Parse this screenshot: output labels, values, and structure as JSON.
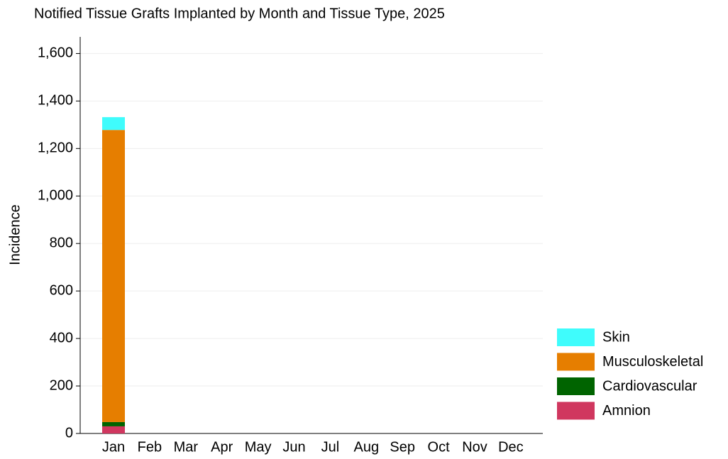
{
  "chart_data": {
    "type": "stacked_bar",
    "title": "Notified Tissue Grafts Implanted by Month and Tissue Type, 2025",
    "y_label": "Incidence",
    "categories": [
      "Jan",
      "Feb",
      "Mar",
      "Apr",
      "May",
      "Jun",
      "Jul",
      "Aug",
      "Sep",
      "Oct",
      "Nov",
      "Dec"
    ],
    "series": [
      {
        "name": "Amnion",
        "color": "#d0375f",
        "values": [
          30,
          null,
          null,
          null,
          null,
          null,
          null,
          null,
          null,
          null,
          null,
          null
        ]
      },
      {
        "name": "Cardiovascular",
        "color": "#006400",
        "values": [
          18,
          null,
          null,
          null,
          null,
          null,
          null,
          null,
          null,
          null,
          null,
          null
        ]
      },
      {
        "name": "Musculoskeletal",
        "color": "#e67e00",
        "values": [
          1230,
          null,
          null,
          null,
          null,
          null,
          null,
          null,
          null,
          null,
          null,
          null
        ]
      },
      {
        "name": "Skin",
        "color": "#3ffcfc",
        "values": [
          54,
          null,
          null,
          null,
          null,
          null,
          null,
          null,
          null,
          null,
          null,
          null
        ]
      }
    ],
    "ylim": [
      0,
      1670
    ],
    "yticks": [
      0,
      200,
      400,
      600,
      800,
      {
        "value": 1000,
        "label": "1,000"
      },
      {
        "value": 1200,
        "label": "1,200"
      },
      {
        "value": 1400,
        "label": "1,400"
      },
      {
        "value": 1600,
        "label": "1,600"
      }
    ],
    "grid": true,
    "legend": "right"
  }
}
